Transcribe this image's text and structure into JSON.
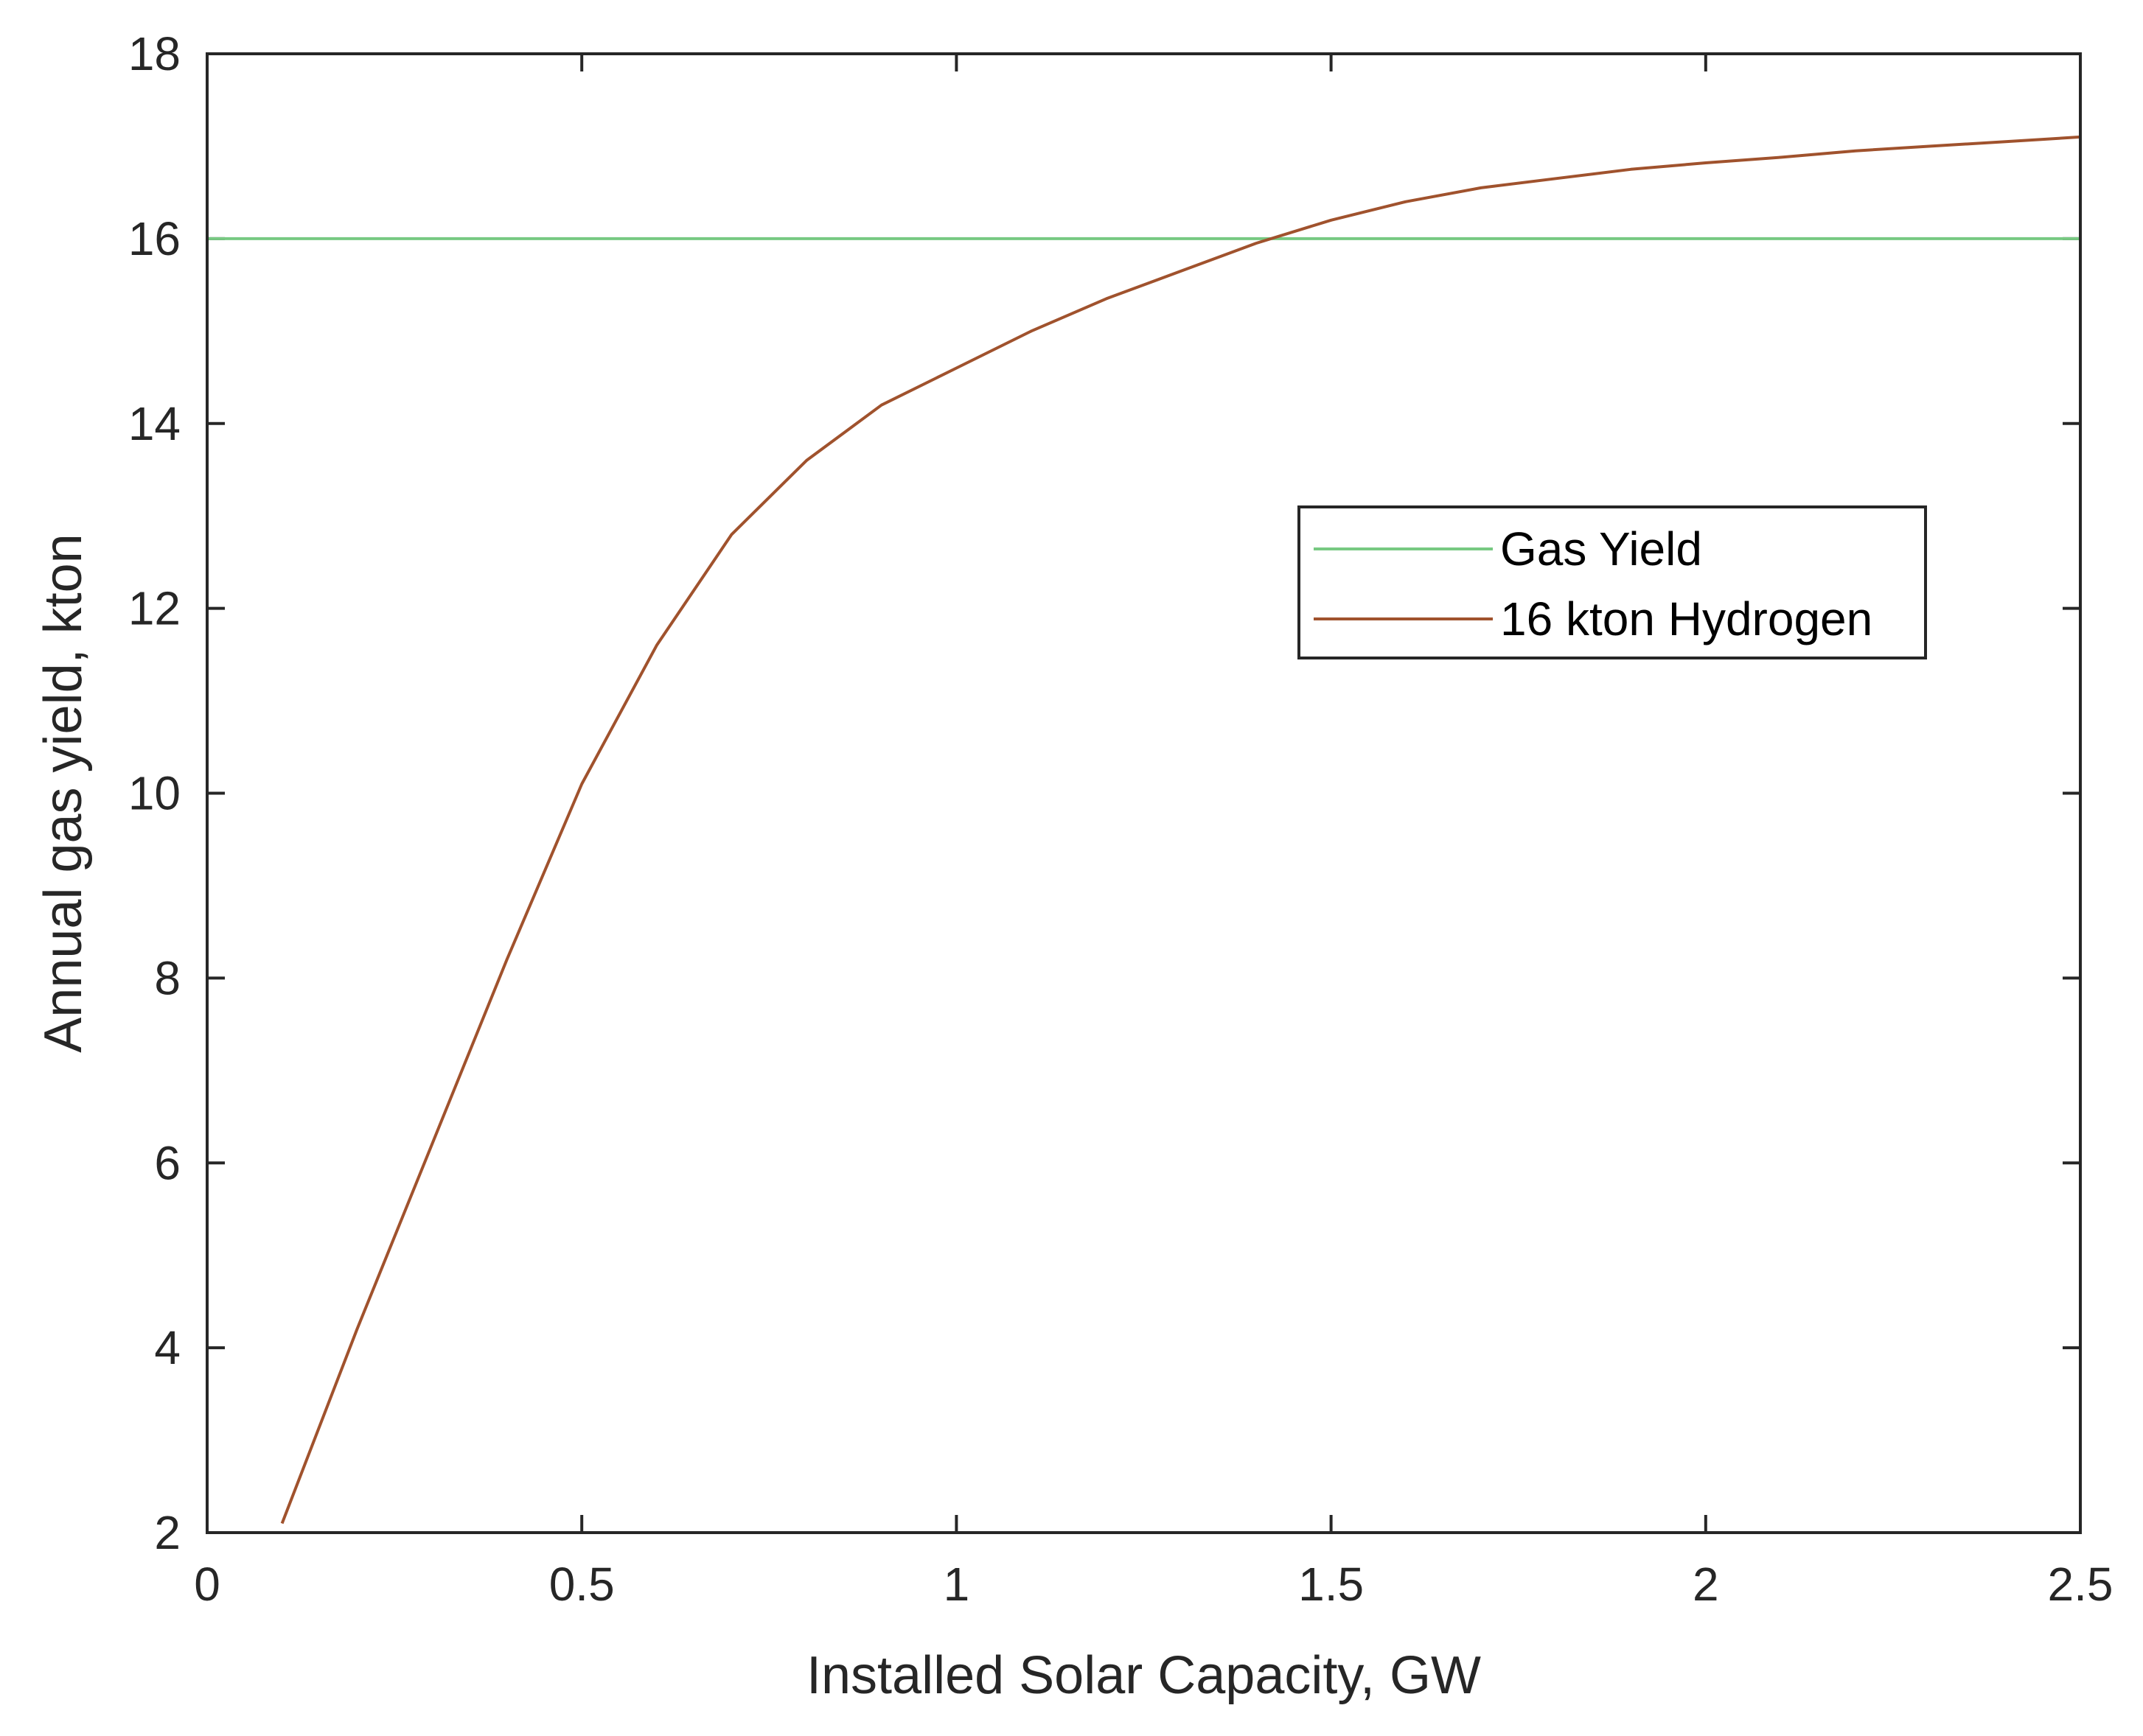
{
  "chart_data": {
    "type": "line",
    "title": "",
    "xlabel": "Installed Solar Capacity, GW",
    "ylabel": "Annual gas yield, kton",
    "xlim": [
      0,
      2.5
    ],
    "ylim": [
      2,
      18
    ],
    "xticks": [
      0,
      0.5,
      1,
      1.5,
      2,
      2.5
    ],
    "xtick_labels": [
      "0",
      "0.5",
      "1",
      "1.5",
      "2",
      "2.5"
    ],
    "yticks": [
      2,
      4,
      6,
      8,
      10,
      12,
      14,
      16,
      18
    ],
    "ytick_labels": [
      "2",
      "4",
      "6",
      "8",
      "10",
      "12",
      "14",
      "16",
      "18"
    ],
    "grid": false,
    "legend_position": "center-right",
    "series": [
      {
        "name": "Gas Yield",
        "color": "#77c982",
        "x": [
          0,
          2.5
        ],
        "y": [
          16,
          16
        ]
      },
      {
        "name": "16 kton Hydrogen",
        "color": "#a0522d",
        "x": [
          0.1,
          0.2,
          0.3,
          0.4,
          0.5,
          0.6,
          0.7,
          0.8,
          0.9,
          1.0,
          1.1,
          1.2,
          1.3,
          1.4,
          1.5,
          1.6,
          1.7,
          1.8,
          1.9,
          2.0,
          2.1,
          2.2,
          2.3,
          2.4,
          2.5
        ],
        "y": [
          2.1,
          4.2,
          6.2,
          8.2,
          10.1,
          11.6,
          12.8,
          13.6,
          14.2,
          14.6,
          15.0,
          15.35,
          15.65,
          15.95,
          16.2,
          16.4,
          16.55,
          16.65,
          16.75,
          16.82,
          16.88,
          16.95,
          17.0,
          17.05,
          17.1
        ]
      }
    ]
  }
}
